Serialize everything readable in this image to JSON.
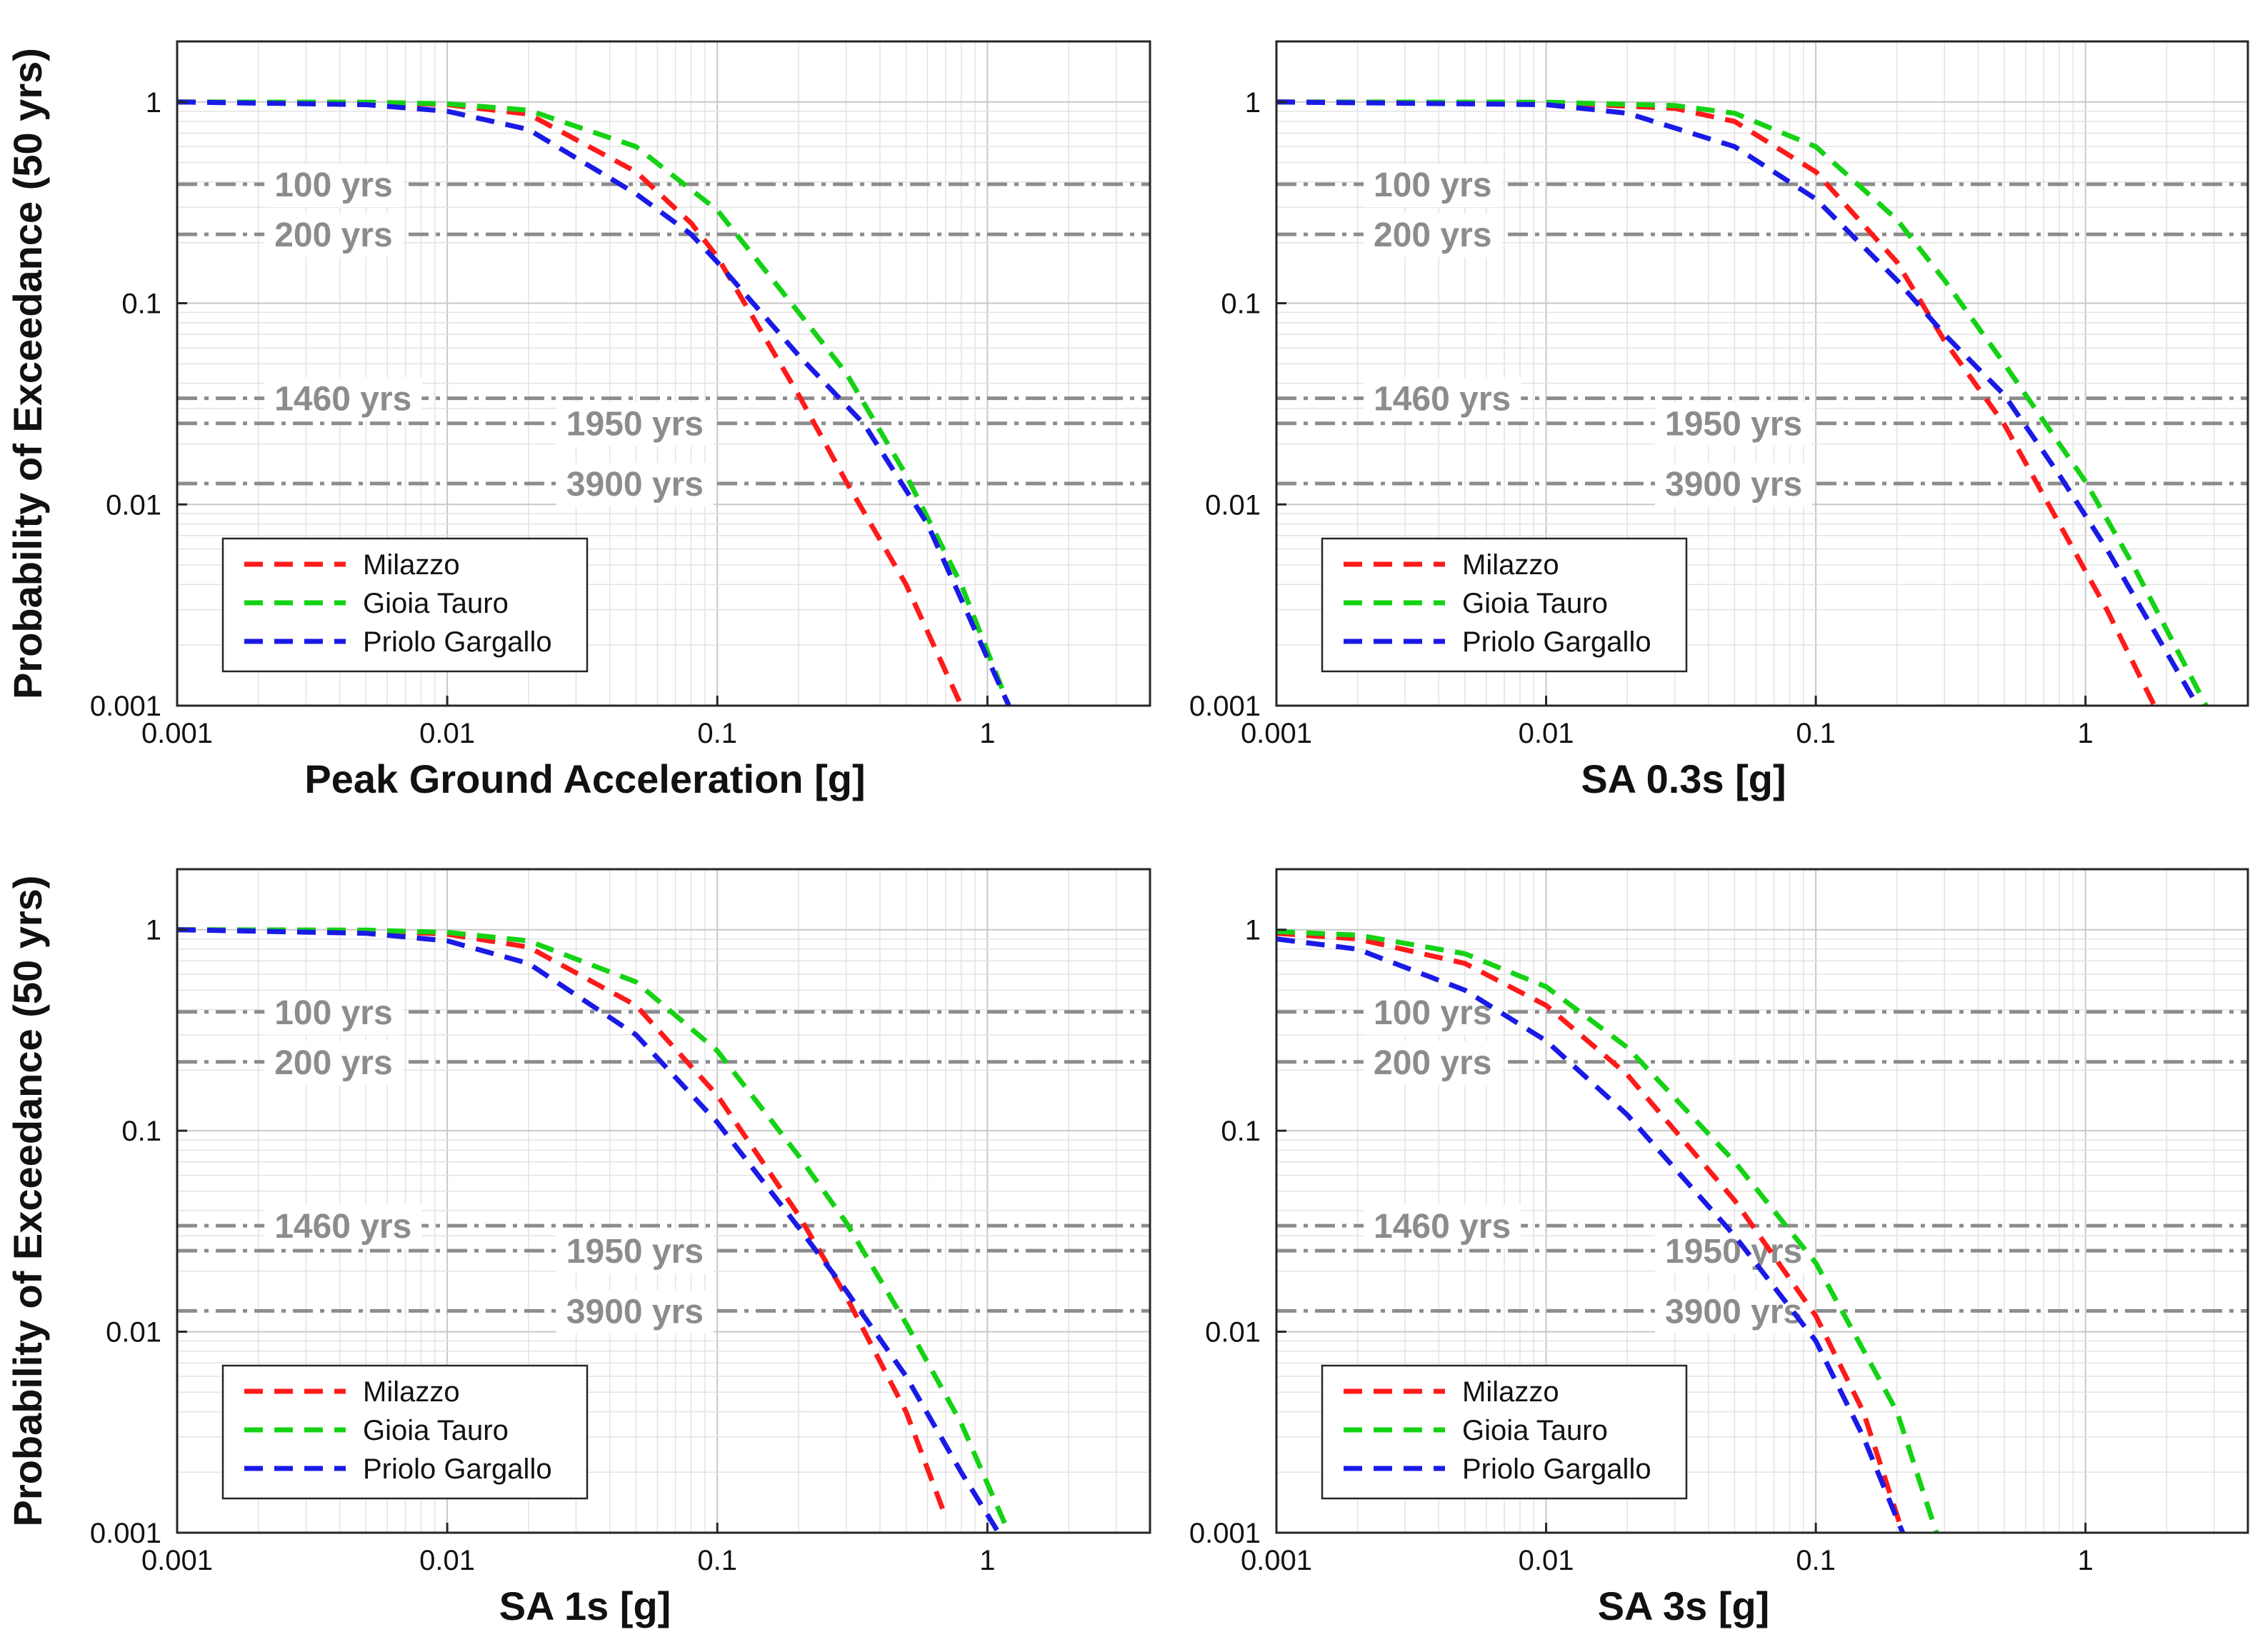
{
  "chart_data": [
    {
      "type": "line",
      "panel": "top-left",
      "title": "",
      "xlabel": "Peak Ground Acceleration [g]",
      "ylabel": "Probability of Exceedance (50 yrs)",
      "xscale": "log",
      "yscale": "log",
      "xlim": [
        0.001,
        4
      ],
      "ylim": [
        0.001,
        2
      ],
      "xticks": [
        "0.001",
        "0.01",
        "0.1",
        "1"
      ],
      "yticks": [
        "0.001",
        "0.01",
        "0.1",
        "1"
      ],
      "grid": true,
      "legend_position": "lower-left",
      "return_periods": [
        {
          "label": "100 yrs",
          "prob": 0.39
        },
        {
          "label": "200 yrs",
          "prob": 0.22
        },
        {
          "label": "1460 yrs",
          "prob": 0.0337
        },
        {
          "label": "1950 yrs",
          "prob": 0.0253
        },
        {
          "label": "3900 yrs",
          "prob": 0.0127
        }
      ],
      "series": [
        {
          "name": "Milazzo",
          "color": "#ff1a1a",
          "x": [
            0.001,
            0.005,
            0.01,
            0.02,
            0.05,
            0.08,
            0.1,
            0.2,
            0.3,
            0.5,
            0.8
          ],
          "y": [
            1.0,
            0.995,
            0.97,
            0.87,
            0.45,
            0.25,
            0.17,
            0.035,
            0.013,
            0.004,
            0.001
          ]
        },
        {
          "name": "Gioia Tauro",
          "color": "#14d214",
          "x": [
            0.001,
            0.005,
            0.01,
            0.02,
            0.05,
            0.1,
            0.2,
            0.3,
            0.5,
            0.8,
            1.2
          ],
          "y": [
            1.0,
            0.998,
            0.98,
            0.91,
            0.6,
            0.29,
            0.09,
            0.045,
            0.014,
            0.004,
            0.001
          ]
        },
        {
          "name": "Priolo Gargallo",
          "color": "#1a1ae6",
          "x": [
            0.001,
            0.005,
            0.01,
            0.02,
            0.05,
            0.08,
            0.1,
            0.2,
            0.35,
            0.6,
            1.2
          ],
          "y": [
            1.0,
            0.97,
            0.9,
            0.73,
            0.35,
            0.22,
            0.16,
            0.055,
            0.025,
            0.008,
            0.001
          ]
        }
      ]
    },
    {
      "type": "line",
      "panel": "top-right",
      "title": "",
      "xlabel": "SA 0.3s [g]",
      "ylabel": "",
      "xscale": "log",
      "yscale": "log",
      "xlim": [
        0.001,
        4
      ],
      "ylim": [
        0.001,
        2
      ],
      "xticks": [
        "0.001",
        "0.01",
        "0.1",
        "1"
      ],
      "yticks": [
        "0.001",
        "0.01",
        "0.1",
        "1"
      ],
      "grid": true,
      "legend_position": "lower-left",
      "return_periods": [
        {
          "label": "100 yrs",
          "prob": 0.39
        },
        {
          "label": "200 yrs",
          "prob": 0.22
        },
        {
          "label": "1460 yrs",
          "prob": 0.0337
        },
        {
          "label": "1950 yrs",
          "prob": 0.0253
        },
        {
          "label": "3900 yrs",
          "prob": 0.0127
        }
      ],
      "series": [
        {
          "name": "Milazzo",
          "color": "#ff1a1a",
          "x": [
            0.001,
            0.01,
            0.03,
            0.05,
            0.1,
            0.2,
            0.3,
            0.5,
            0.8,
            1.2,
            1.8
          ],
          "y": [
            1.0,
            0.995,
            0.93,
            0.8,
            0.45,
            0.16,
            0.065,
            0.025,
            0.008,
            0.003,
            0.001
          ]
        },
        {
          "name": "Gioia Tauro",
          "color": "#14d214",
          "x": [
            0.001,
            0.01,
            0.03,
            0.05,
            0.1,
            0.2,
            0.3,
            0.5,
            0.8,
            1.0,
            1.5,
            2.8
          ],
          "y": [
            1.0,
            0.998,
            0.96,
            0.88,
            0.6,
            0.26,
            0.13,
            0.05,
            0.02,
            0.013,
            0.005,
            0.001
          ]
        },
        {
          "name": "Priolo Gargallo",
          "color": "#1a1ae6",
          "x": [
            0.001,
            0.01,
            0.02,
            0.05,
            0.1,
            0.2,
            0.3,
            0.5,
            0.8,
            1.2,
            2.6
          ],
          "y": [
            1.0,
            0.97,
            0.88,
            0.6,
            0.33,
            0.13,
            0.07,
            0.035,
            0.014,
            0.006,
            0.001
          ]
        }
      ]
    },
    {
      "type": "line",
      "panel": "bottom-left",
      "title": "",
      "xlabel": "SA 1s [g]",
      "ylabel": "Probability of Exceedance (50 yrs)",
      "xscale": "log",
      "yscale": "log",
      "xlim": [
        0.001,
        4
      ],
      "ylim": [
        0.001,
        2
      ],
      "xticks": [
        "0.001",
        "0.01",
        "0.1",
        "1"
      ],
      "yticks": [
        "0.001",
        "0.01",
        "0.1",
        "1"
      ],
      "grid": true,
      "legend_position": "lower-left",
      "return_periods": [
        {
          "label": "100 yrs",
          "prob": 0.39
        },
        {
          "label": "200 yrs",
          "prob": 0.22
        },
        {
          "label": "1460 yrs",
          "prob": 0.0337
        },
        {
          "label": "1950 yrs",
          "prob": 0.0253
        },
        {
          "label": "3900 yrs",
          "prob": 0.0127
        }
      ],
      "series": [
        {
          "name": "Milazzo",
          "color": "#ff1a1a",
          "x": [
            0.001,
            0.005,
            0.01,
            0.02,
            0.05,
            0.1,
            0.2,
            0.3,
            0.5,
            0.7
          ],
          "y": [
            1.0,
            0.99,
            0.95,
            0.82,
            0.42,
            0.15,
            0.038,
            0.015,
            0.004,
            0.0012
          ]
        },
        {
          "name": "Gioia Tauro",
          "color": "#14d214",
          "x": [
            0.001,
            0.005,
            0.01,
            0.02,
            0.05,
            0.1,
            0.2,
            0.3,
            0.5,
            0.8,
            1.2
          ],
          "y": [
            1.0,
            0.995,
            0.97,
            0.88,
            0.55,
            0.25,
            0.075,
            0.035,
            0.011,
            0.0035,
            0.001
          ]
        },
        {
          "name": "Priolo Gargallo",
          "color": "#1a1ae6",
          "x": [
            0.001,
            0.005,
            0.01,
            0.02,
            0.05,
            0.1,
            0.2,
            0.3,
            0.5,
            0.8,
            1.1
          ],
          "y": [
            1.0,
            0.96,
            0.88,
            0.68,
            0.3,
            0.11,
            0.033,
            0.016,
            0.006,
            0.002,
            0.001
          ]
        }
      ]
    },
    {
      "type": "line",
      "panel": "bottom-right",
      "title": "",
      "xlabel": "SA 3s [g]",
      "ylabel": "",
      "xscale": "log",
      "yscale": "log",
      "xlim": [
        0.001,
        4
      ],
      "ylim": [
        0.001,
        2
      ],
      "xticks": [
        "0.001",
        "0.01",
        "0.1",
        "1"
      ],
      "yticks": [
        "0.001",
        "0.01",
        "0.1",
        "1"
      ],
      "grid": true,
      "legend_position": "lower-left",
      "return_periods": [
        {
          "label": "100 yrs",
          "prob": 0.39
        },
        {
          "label": "200 yrs",
          "prob": 0.22
        },
        {
          "label": "1460 yrs",
          "prob": 0.0337
        },
        {
          "label": "1950 yrs",
          "prob": 0.0253
        },
        {
          "label": "3900 yrs",
          "prob": 0.0127
        }
      ],
      "series": [
        {
          "name": "Milazzo",
          "color": "#ff1a1a",
          "x": [
            0.001,
            0.002,
            0.005,
            0.01,
            0.02,
            0.05,
            0.1,
            0.15,
            0.21
          ],
          "y": [
            0.96,
            0.9,
            0.68,
            0.42,
            0.19,
            0.045,
            0.012,
            0.004,
            0.001
          ]
        },
        {
          "name": "Gioia Tauro",
          "color": "#14d214",
          "x": [
            0.001,
            0.002,
            0.005,
            0.01,
            0.02,
            0.05,
            0.1,
            0.2,
            0.28
          ],
          "y": [
            0.98,
            0.94,
            0.76,
            0.52,
            0.26,
            0.07,
            0.022,
            0.004,
            0.001
          ]
        },
        {
          "name": "Priolo Gargallo",
          "color": "#1a1ae6",
          "x": [
            0.001,
            0.002,
            0.005,
            0.01,
            0.02,
            0.05,
            0.1,
            0.15,
            0.21
          ],
          "y": [
            0.9,
            0.8,
            0.5,
            0.28,
            0.12,
            0.03,
            0.009,
            0.003,
            0.001
          ]
        }
      ]
    }
  ]
}
